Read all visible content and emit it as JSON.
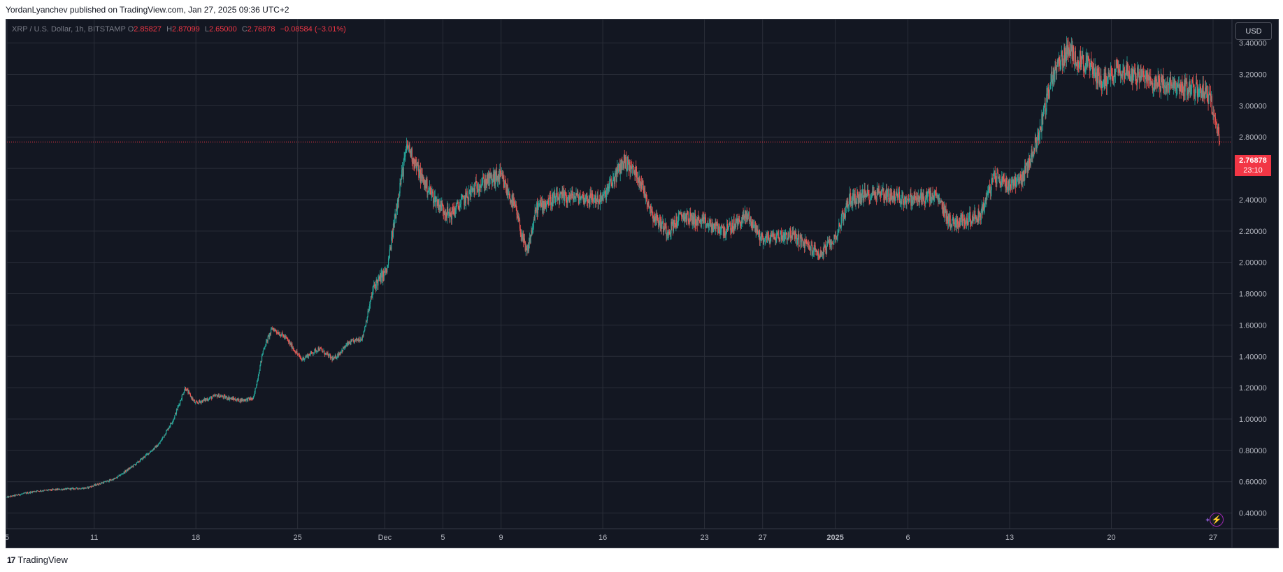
{
  "header": {
    "text": "YordanLyanchev published on TradingView.com, Jan 27, 2025 09:36 UTC+2"
  },
  "legend": {
    "symbol": "XRP / U.S. Dollar, 1h, BITSTAMP",
    "open_label": "O",
    "open": "2.85827",
    "high_label": "H",
    "high": "2.87099",
    "low_label": "L",
    "low": "2.65000",
    "close_label": "C",
    "close": "2.76878",
    "change": "−0.08584 (−3.01%)"
  },
  "currency_button": "USD",
  "last_price": {
    "value": "2.76878",
    "countdown": "23:10"
  },
  "footer": {
    "logo": "17",
    "brand": "TradingView"
  },
  "colors": {
    "up": "#26a69a",
    "down": "#ef5350",
    "background": "#131722",
    "grid": "#2a2e39",
    "text": "#b2b5be",
    "last": "#f23645"
  },
  "icons": {
    "flash": "lightning-icon",
    "sparkle": "sparkle-icon"
  },
  "chart_data": {
    "type": "candlestick",
    "interval": "1h",
    "ylim": [
      0.3,
      3.55
    ],
    "y_ticks": [
      "0.40000",
      "0.60000",
      "0.80000",
      "1.00000",
      "1.20000",
      "1.40000",
      "1.60000",
      "1.80000",
      "2.00000",
      "2.20000",
      "2.40000",
      "2.60000",
      "2.80000",
      "3.00000",
      "3.20000",
      "3.40000"
    ],
    "x_ticks": [
      {
        "label": "5",
        "day": 5
      },
      {
        "label": "11",
        "day": 11
      },
      {
        "label": "18",
        "day": 18
      },
      {
        "label": "25",
        "day": 25
      },
      {
        "label": "Dec",
        "day": 31
      },
      {
        "label": "5",
        "day": 35
      },
      {
        "label": "9",
        "day": 39
      },
      {
        "label": "16",
        "day": 46
      },
      {
        "label": "23",
        "day": 53
      },
      {
        "label": "27",
        "day": 57
      },
      {
        "label": "2025",
        "day": 62
      },
      {
        "label": "6",
        "day": 67
      },
      {
        "label": "13",
        "day": 74
      },
      {
        "label": "20",
        "day": 81
      },
      {
        "label": "27",
        "day": 88
      }
    ],
    "last_price": 2.76878,
    "path": [
      [
        5.0,
        0.5
      ],
      [
        7.0,
        0.54
      ],
      [
        8.5,
        0.55
      ],
      [
        10.5,
        0.56
      ],
      [
        12.5,
        0.62
      ],
      [
        14.0,
        0.72
      ],
      [
        15.5,
        0.84
      ],
      [
        16.5,
        1.0
      ],
      [
        17.3,
        1.2
      ],
      [
        18.0,
        1.1
      ],
      [
        19.5,
        1.15
      ],
      [
        21.0,
        1.12
      ],
      [
        22.0,
        1.13
      ],
      [
        22.7,
        1.45
      ],
      [
        23.3,
        1.58
      ],
      [
        24.2,
        1.52
      ],
      [
        25.3,
        1.38
      ],
      [
        26.5,
        1.45
      ],
      [
        27.5,
        1.38
      ],
      [
        28.5,
        1.48
      ],
      [
        29.5,
        1.52
      ],
      [
        30.3,
        1.85
      ],
      [
        31.2,
        1.95
      ],
      [
        32.0,
        2.45
      ],
      [
        32.6,
        2.75
      ],
      [
        33.5,
        2.55
      ],
      [
        34.5,
        2.4
      ],
      [
        35.5,
        2.3
      ],
      [
        37.5,
        2.5
      ],
      [
        39.0,
        2.55
      ],
      [
        40.0,
        2.35
      ],
      [
        40.8,
        2.05
      ],
      [
        41.5,
        2.35
      ],
      [
        42.5,
        2.4
      ],
      [
        44.0,
        2.42
      ],
      [
        46.0,
        2.4
      ],
      [
        47.5,
        2.65
      ],
      [
        48.5,
        2.55
      ],
      [
        49.5,
        2.3
      ],
      [
        50.5,
        2.2
      ],
      [
        51.5,
        2.3
      ],
      [
        53.0,
        2.25
      ],
      [
        54.5,
        2.2
      ],
      [
        56.0,
        2.3
      ],
      [
        57.0,
        2.15
      ],
      [
        59.0,
        2.18
      ],
      [
        61.0,
        2.05
      ],
      [
        62.0,
        2.15
      ],
      [
        63.0,
        2.4
      ],
      [
        65.0,
        2.45
      ],
      [
        67.0,
        2.4
      ],
      [
        69.0,
        2.42
      ],
      [
        70.0,
        2.25
      ],
      [
        72.0,
        2.3
      ],
      [
        73.0,
        2.55
      ],
      [
        74.0,
        2.5
      ],
      [
        75.0,
        2.55
      ],
      [
        76.0,
        2.8
      ],
      [
        77.0,
        3.2
      ],
      [
        78.0,
        3.35
      ],
      [
        79.5,
        3.25
      ],
      [
        80.5,
        3.15
      ],
      [
        81.5,
        3.25
      ],
      [
        82.5,
        3.2
      ],
      [
        84.0,
        3.15
      ],
      [
        85.5,
        3.12
      ],
      [
        87.5,
        3.1
      ],
      [
        88.2,
        2.95
      ],
      [
        88.5,
        2.77
      ]
    ]
  }
}
